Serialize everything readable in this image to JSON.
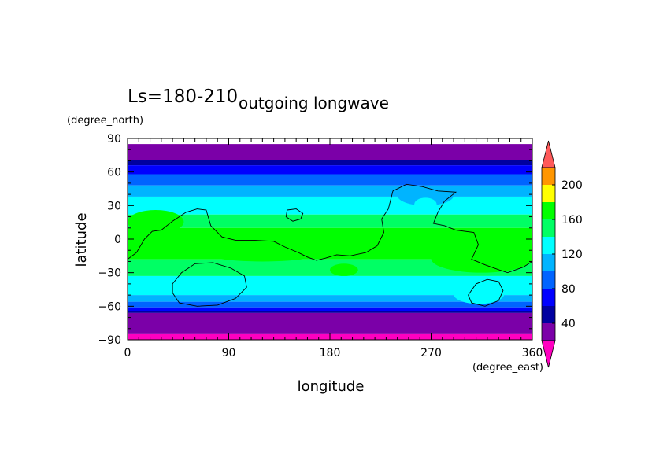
{
  "chart_data": {
    "type": "heatmap",
    "title": "outgoing longwave",
    "subtitle": "Ls=180-210",
    "xlabel": "longitude",
    "ylabel": "latitude",
    "x_unit": "(degree_east)",
    "y_unit": "(degree_north)",
    "xlim": [
      0,
      360
    ],
    "ylim": [
      -90,
      90
    ],
    "x_ticks": [
      0,
      90,
      180,
      270,
      360
    ],
    "y_ticks": [
      -90,
      -60,
      -30,
      0,
      30,
      60,
      90
    ],
    "x_tick_labels": [
      "0",
      "90",
      "180",
      "270",
      "360"
    ],
    "y_tick_labels": [
      "−90",
      "−60",
      "−30",
      "0",
      "30",
      "60",
      "90"
    ],
    "colorbar": {
      "levels": [
        20,
        40,
        60,
        80,
        100,
        120,
        140,
        160,
        180,
        200,
        220
      ],
      "colors": [
        "#7b00a8",
        "#0000a0",
        "#0000ff",
        "#0064ff",
        "#00b4ff",
        "#00ffff",
        "#00ff64",
        "#00ff00",
        "#ffff00",
        "#ff9600",
        "#ff5050"
      ],
      "under_color": "#ff00c0",
      "over_color": "#ff5a5a",
      "tick_values": [
        40,
        80,
        120,
        160,
        200
      ],
      "tick_labels": [
        "40",
        "80",
        "120",
        "160",
        "200"
      ]
    },
    "bands": [
      {
        "lat_from": 90,
        "lat_to": 85,
        "level": null
      },
      {
        "lat_from": 85,
        "lat_to": 71,
        "level": 20
      },
      {
        "lat_from": 71,
        "lat_to": 66,
        "level": 40
      },
      {
        "lat_from": 66,
        "lat_to": 58,
        "level": 60
      },
      {
        "lat_from": 58,
        "lat_to": 48,
        "level": 80
      },
      {
        "lat_from": 48,
        "lat_to": 38,
        "level": 100
      },
      {
        "lat_from": 38,
        "lat_to": 22,
        "level": 120
      },
      {
        "lat_from": 22,
        "lat_to": 10,
        "level": 140
      },
      {
        "lat_from": 10,
        "lat_to": -18,
        "level": 160
      },
      {
        "lat_from": -18,
        "lat_to": -33,
        "level": 140
      },
      {
        "lat_from": -33,
        "lat_to": -50,
        "level": 120
      },
      {
        "lat_from": -50,
        "lat_to": -56,
        "level": 100
      },
      {
        "lat_from": -56,
        "lat_to": -61,
        "level": 80
      },
      {
        "lat_from": -61,
        "lat_to": -64,
        "level": 60
      },
      {
        "lat_from": -64,
        "lat_to": -66,
        "level": 40
      },
      {
        "lat_from": -66,
        "lat_to": -85,
        "level": 20
      },
      {
        "lat_from": -85,
        "lat_to": -90,
        "level": 0
      }
    ],
    "patches": [
      {
        "lon_from": 240,
        "lon_to": 290,
        "lat_from": 48,
        "lat_to": 30,
        "level": 100
      },
      {
        "lon_from": 255,
        "lon_to": 275,
        "lat_from": 37,
        "lat_to": 25,
        "level": 120
      },
      {
        "lon_from": 0,
        "lon_to": 50,
        "lat_from": 26,
        "lat_to": 5,
        "level": 160
      },
      {
        "lon_from": 60,
        "lon_to": 180,
        "lat_from": 0,
        "lat_to": -20,
        "level": 160
      },
      {
        "lon_from": 270,
        "lon_to": 360,
        "lat_from": -5,
        "lat_to": -30,
        "level": 160
      },
      {
        "lon_from": 180,
        "lon_to": 205,
        "lat_from": -22,
        "lat_to": -33,
        "level": 160
      },
      {
        "lon_from": 290,
        "lon_to": 335,
        "lat_from": -40,
        "lat_to": -58,
        "level": 120
      }
    ],
    "contours": [
      {
        "name": "continent-outline-main",
        "points": [
          [
            0,
            -18
          ],
          [
            8,
            -12
          ],
          [
            15,
            0
          ],
          [
            22,
            7
          ],
          [
            30,
            8
          ],
          [
            40,
            16
          ],
          [
            52,
            24
          ],
          [
            62,
            27
          ],
          [
            70,
            26
          ],
          [
            74,
            12
          ],
          [
            84,
            2
          ],
          [
            96,
            -1
          ],
          [
            112,
            -1
          ],
          [
            130,
            -2
          ],
          [
            140,
            -7
          ],
          [
            152,
            -12
          ],
          [
            160,
            -16
          ],
          [
            168,
            -19
          ],
          [
            176,
            -17
          ],
          [
            186,
            -14
          ],
          [
            198,
            -15
          ],
          [
            212,
            -12
          ],
          [
            222,
            -6
          ],
          [
            228,
            6
          ],
          [
            226,
            18
          ],
          [
            232,
            27
          ],
          [
            236,
            43
          ],
          [
            248,
            49
          ],
          [
            262,
            47
          ],
          [
            276,
            43
          ],
          [
            292,
            42
          ],
          [
            282,
            34
          ],
          [
            276,
            24
          ],
          [
            272,
            14
          ],
          [
            282,
            12
          ],
          [
            292,
            8
          ],
          [
            308,
            6
          ],
          [
            312,
            -5
          ],
          [
            306,
            -18
          ],
          [
            318,
            -23
          ],
          [
            332,
            -28
          ],
          [
            338,
            -30
          ],
          [
            352,
            -25
          ],
          [
            360,
            -20
          ]
        ]
      },
      {
        "name": "continent-outline-island",
        "points": [
          [
            142,
            26
          ],
          [
            150,
            27
          ],
          [
            156,
            23
          ],
          [
            154,
            18
          ],
          [
            147,
            16
          ],
          [
            141,
            20
          ],
          [
            142,
            26
          ]
        ]
      },
      {
        "name": "continent-outline-south-west",
        "points": [
          [
            40,
            -40
          ],
          [
            48,
            -30
          ],
          [
            60,
            -22
          ],
          [
            76,
            -21
          ],
          [
            92,
            -26
          ],
          [
            104,
            -33
          ],
          [
            106,
            -43
          ],
          [
            96,
            -53
          ],
          [
            80,
            -59
          ],
          [
            62,
            -60
          ],
          [
            46,
            -57
          ],
          [
            40,
            -48
          ],
          [
            40,
            -40
          ]
        ]
      },
      {
        "name": "continent-outline-south-east",
        "points": [
          [
            303,
            -50
          ],
          [
            310,
            -40
          ],
          [
            320,
            -36
          ],
          [
            330,
            -38
          ],
          [
            334,
            -46
          ],
          [
            330,
            -55
          ],
          [
            318,
            -60
          ],
          [
            306,
            -57
          ],
          [
            303,
            -50
          ]
        ]
      }
    ]
  }
}
